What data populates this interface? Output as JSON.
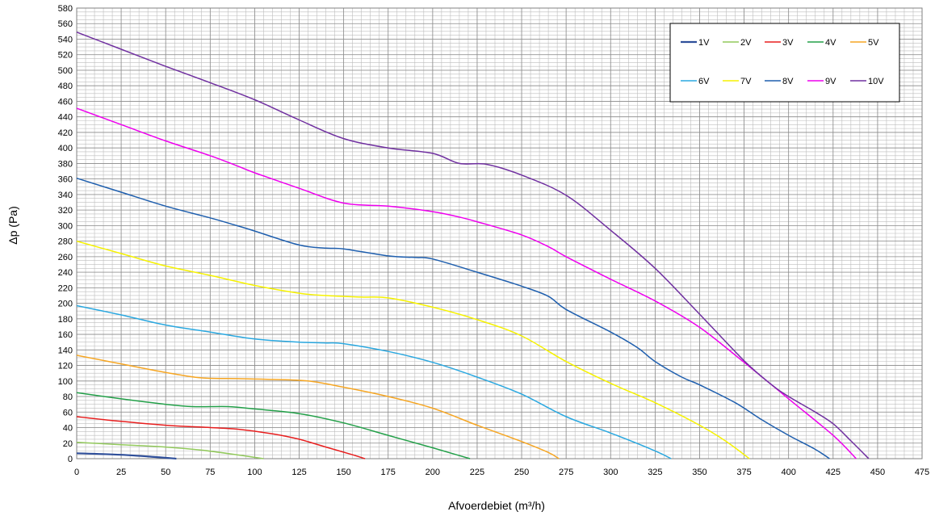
{
  "chart_data": {
    "type": "line",
    "title": "",
    "xlabel": "Afvoerdebiet (m³/h)",
    "ylabel": "Δp (Pa)",
    "xlim": [
      0,
      475
    ],
    "ylim": [
      0,
      580
    ],
    "x_ticks": [
      0,
      25,
      50,
      75,
      100,
      125,
      150,
      175,
      200,
      225,
      250,
      275,
      300,
      325,
      350,
      375,
      400,
      425,
      450,
      475
    ],
    "y_ticks": [
      0,
      20,
      40,
      60,
      80,
      100,
      120,
      140,
      160,
      180,
      200,
      220,
      240,
      260,
      280,
      300,
      320,
      340,
      360,
      380,
      400,
      420,
      440,
      460,
      480,
      500,
      520,
      540,
      560,
      580
    ],
    "grid": true,
    "legend_position": "top-right",
    "series": [
      {
        "name": "1V",
        "color": "#2F4F9A",
        "points": [
          [
            0,
            7
          ],
          [
            25,
            5
          ],
          [
            45,
            2
          ],
          [
            56,
            0
          ]
        ]
      },
      {
        "name": "2V",
        "color": "#92C95C",
        "points": [
          [
            0,
            21
          ],
          [
            25,
            18
          ],
          [
            50,
            15
          ],
          [
            70,
            11
          ],
          [
            90,
            5
          ],
          [
            105,
            0
          ]
        ]
      },
      {
        "name": "3V",
        "color": "#E81E1E",
        "points": [
          [
            0,
            54
          ],
          [
            25,
            48
          ],
          [
            50,
            43
          ],
          [
            75,
            40
          ],
          [
            90,
            38
          ],
          [
            110,
            32
          ],
          [
            125,
            25
          ],
          [
            140,
            15
          ],
          [
            155,
            5
          ],
          [
            162,
            0
          ]
        ]
      },
      {
        "name": "4V",
        "color": "#23A049",
        "points": [
          [
            0,
            85
          ],
          [
            25,
            77
          ],
          [
            50,
            70
          ],
          [
            65,
            67
          ],
          [
            85,
            67
          ],
          [
            100,
            64
          ],
          [
            125,
            58
          ],
          [
            150,
            46
          ],
          [
            175,
            30
          ],
          [
            200,
            14
          ],
          [
            215,
            4
          ],
          [
            221,
            0
          ]
        ]
      },
      {
        "name": "5V",
        "color": "#F6A623",
        "points": [
          [
            0,
            133
          ],
          [
            25,
            122
          ],
          [
            50,
            111
          ],
          [
            70,
            104
          ],
          [
            90,
            103
          ],
          [
            110,
            102
          ],
          [
            130,
            100
          ],
          [
            150,
            92
          ],
          [
            175,
            80
          ],
          [
            200,
            65
          ],
          [
            225,
            43
          ],
          [
            250,
            22
          ],
          [
            265,
            8
          ],
          [
            271,
            0
          ]
        ]
      },
      {
        "name": "6V",
        "color": "#2AA8E0",
        "points": [
          [
            0,
            197
          ],
          [
            25,
            185
          ],
          [
            50,
            172
          ],
          [
            75,
            163
          ],
          [
            100,
            154
          ],
          [
            125,
            150
          ],
          [
            140,
            149
          ],
          [
            150,
            148
          ],
          [
            175,
            138
          ],
          [
            200,
            124
          ],
          [
            225,
            105
          ],
          [
            250,
            83
          ],
          [
            275,
            54
          ],
          [
            300,
            33
          ],
          [
            325,
            10
          ],
          [
            334,
            0
          ]
        ]
      },
      {
        "name": "7V",
        "color": "#F6F200",
        "points": [
          [
            0,
            280
          ],
          [
            25,
            264
          ],
          [
            50,
            248
          ],
          [
            75,
            236
          ],
          [
            100,
            223
          ],
          [
            125,
            213
          ],
          [
            140,
            210
          ],
          [
            160,
            208
          ],
          [
            175,
            207
          ],
          [
            200,
            195
          ],
          [
            225,
            179
          ],
          [
            250,
            158
          ],
          [
            275,
            125
          ],
          [
            300,
            97
          ],
          [
            325,
            72
          ],
          [
            350,
            43
          ],
          [
            365,
            22
          ],
          [
            378,
            0
          ]
        ]
      },
      {
        "name": "8V",
        "color": "#1F5FAE",
        "points": [
          [
            0,
            361
          ],
          [
            25,
            343
          ],
          [
            50,
            325
          ],
          [
            75,
            310
          ],
          [
            90,
            300
          ],
          [
            100,
            293
          ],
          [
            125,
            275
          ],
          [
            140,
            271
          ],
          [
            150,
            270
          ],
          [
            175,
            261
          ],
          [
            190,
            259
          ],
          [
            200,
            257
          ],
          [
            225,
            240
          ],
          [
            250,
            222
          ],
          [
            265,
            209
          ],
          [
            275,
            192
          ],
          [
            300,
            163
          ],
          [
            315,
            143
          ],
          [
            325,
            125
          ],
          [
            340,
            105
          ],
          [
            350,
            95
          ],
          [
            370,
            72
          ],
          [
            385,
            50
          ],
          [
            400,
            30
          ],
          [
            415,
            12
          ],
          [
            423,
            0
          ]
        ]
      },
      {
        "name": "9V",
        "color": "#EE00EE",
        "points": [
          [
            0,
            451
          ],
          [
            25,
            430
          ],
          [
            50,
            409
          ],
          [
            75,
            390
          ],
          [
            90,
            377
          ],
          [
            100,
            368
          ],
          [
            125,
            348
          ],
          [
            150,
            329
          ],
          [
            175,
            325
          ],
          [
            200,
            318
          ],
          [
            215,
            311
          ],
          [
            225,
            305
          ],
          [
            250,
            288
          ],
          [
            265,
            273
          ],
          [
            275,
            260
          ],
          [
            300,
            231
          ],
          [
            325,
            203
          ],
          [
            350,
            169
          ],
          [
            375,
            124
          ],
          [
            400,
            77
          ],
          [
            425,
            30
          ],
          [
            438,
            0
          ]
        ]
      },
      {
        "name": "10V",
        "color": "#7030A0",
        "points": [
          [
            0,
            549
          ],
          [
            25,
            527
          ],
          [
            50,
            505
          ],
          [
            75,
            484
          ],
          [
            100,
            462
          ],
          [
            125,
            436
          ],
          [
            150,
            412
          ],
          [
            175,
            400
          ],
          [
            200,
            393
          ],
          [
            215,
            380
          ],
          [
            230,
            379
          ],
          [
            250,
            365
          ],
          [
            275,
            339
          ],
          [
            300,
            294
          ],
          [
            325,
            245
          ],
          [
            350,
            186
          ],
          [
            375,
            126
          ],
          [
            390,
            96
          ],
          [
            400,
            80
          ],
          [
            415,
            60
          ],
          [
            425,
            45
          ],
          [
            435,
            23
          ],
          [
            445,
            0
          ]
        ]
      }
    ]
  }
}
